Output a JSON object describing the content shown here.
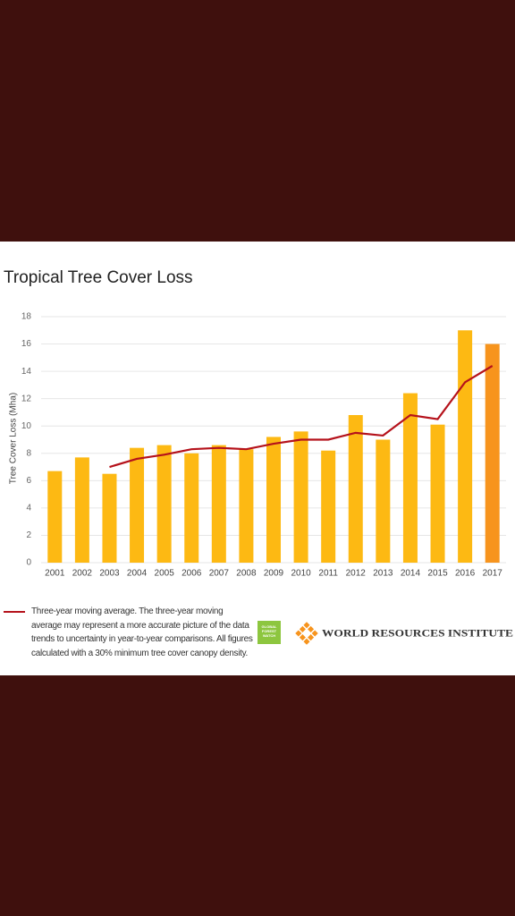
{
  "chart_data": {
    "type": "bar",
    "title": "Tropical Tree Cover Loss",
    "y_label": "Tree Cover Loss (Mha)",
    "categories": [
      "2001",
      "2002",
      "2003",
      "2004",
      "2005",
      "2006",
      "2007",
      "2008",
      "2009",
      "2010",
      "2011",
      "2012",
      "2013",
      "2014",
      "2015",
      "2016",
      "2017"
    ],
    "series": [
      {
        "type": "bar",
        "colors": [
          "#fdb913",
          "#fdb913",
          "#fdb913",
          "#fdb913",
          "#fdb913",
          "#fdb913",
          "#fdb913",
          "#fdb913",
          "#fdb913",
          "#fdb913",
          "#fdb913",
          "#fdb913",
          "#fdb913",
          "#fdb913",
          "#fdb913",
          "#fdb913",
          "#f7941d"
        ],
        "values": [
          6.7,
          7.7,
          6.5,
          8.4,
          8.6,
          8.0,
          8.6,
          8.3,
          9.2,
          9.6,
          8.2,
          10.8,
          9.0,
          12.4,
          10.1,
          17.0,
          16.0
        ]
      },
      {
        "type": "line",
        "name": "Three-year moving average. The three-year moving average may represent a more accurate picture of the data trends to uncertainty in year-to-year comparisons. All figures calculated with a 30% minimum tree cover canopy density.",
        "color": "#b5121b",
        "values": [
          null,
          null,
          7.0,
          7.6,
          7.9,
          8.3,
          8.4,
          8.3,
          8.7,
          9.0,
          9.0,
          9.5,
          9.3,
          10.8,
          10.5,
          13.2,
          14.4
        ]
      }
    ],
    "ylim": [
      0,
      18
    ],
    "yticks": [
      0,
      2,
      4,
      6,
      8,
      10,
      12,
      14,
      16,
      18
    ],
    "grid": true
  },
  "logos": {
    "gfw": "GLOBAL FOREST WATCH",
    "wri": "WORLD RESOURCES INSTITUTE"
  }
}
